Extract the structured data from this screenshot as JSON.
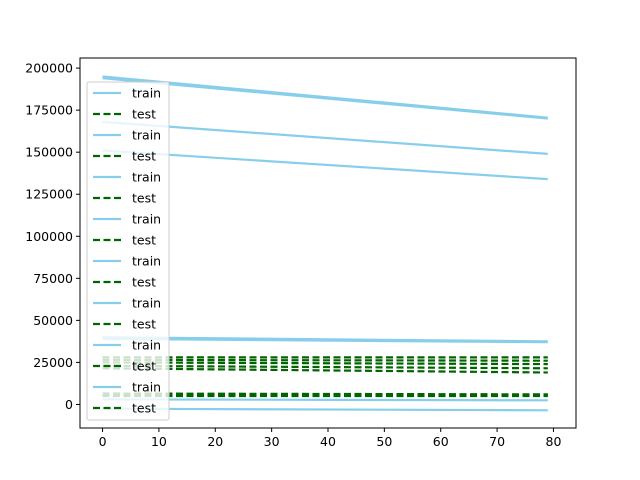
{
  "chart_data": {
    "type": "line",
    "title": "",
    "xlabel": "",
    "ylabel": "",
    "xlim": [
      -4,
      84
    ],
    "ylim": [
      -14000,
      206000
    ],
    "x_ticks": [
      0,
      10,
      20,
      30,
      40,
      50,
      60,
      70,
      80
    ],
    "x_tick_labels": [
      "0",
      "10",
      "20",
      "30",
      "40",
      "50",
      "60",
      "70",
      "80"
    ],
    "y_ticks": [
      0,
      25000,
      50000,
      75000,
      100000,
      125000,
      150000,
      175000,
      200000
    ],
    "y_tick_labels": [
      "0",
      "25000",
      "50000",
      "75000",
      "100000",
      "125000",
      "150000",
      "175000",
      "200000"
    ],
    "grid": false,
    "legend_position": "upper-left",
    "x": [
      0,
      79
    ],
    "series": [
      {
        "name": "train",
        "style": "solid",
        "color": "#87ceeb",
        "values": [
          195000,
          170500
        ]
      },
      {
        "name": "test",
        "style": "dashed",
        "color": "#006400",
        "values": [
          28000,
          28000
        ]
      },
      {
        "name": "train",
        "style": "solid",
        "color": "#87ceeb",
        "values": [
          168000,
          149000
        ]
      },
      {
        "name": "test",
        "style": "dashed",
        "color": "#006400",
        "values": [
          26500,
          26000
        ]
      },
      {
        "name": "train",
        "style": "solid",
        "color": "#87ceeb",
        "values": [
          151000,
          134000
        ]
      },
      {
        "name": "test",
        "style": "dashed",
        "color": "#006400",
        "values": [
          25000,
          24000
        ]
      },
      {
        "name": "train",
        "style": "solid",
        "color": "#87ceeb",
        "values": [
          194000,
          170000
        ]
      },
      {
        "name": "test",
        "style": "dashed",
        "color": "#006400",
        "values": [
          23000,
          21500
        ]
      },
      {
        "name": "train",
        "style": "solid",
        "color": "#87ceeb",
        "values": [
          40000,
          37500
        ]
      },
      {
        "name": "test",
        "style": "dashed",
        "color": "#006400",
        "values": [
          21500,
          19000
        ]
      },
      {
        "name": "train",
        "style": "solid",
        "color": "#87ceeb",
        "values": [
          39000,
          37000
        ]
      },
      {
        "name": "test",
        "style": "dashed",
        "color": "#006400",
        "values": [
          6500,
          6000
        ]
      },
      {
        "name": "train",
        "style": "solid",
        "color": "#87ceeb",
        "values": [
          3000,
          2500
        ]
      },
      {
        "name": "test",
        "style": "dashed",
        "color": "#006400",
        "values": [
          5500,
          5500
        ]
      },
      {
        "name": "train",
        "style": "solid",
        "color": "#87ceeb",
        "values": [
          -2500,
          -3500
        ]
      },
      {
        "name": "test",
        "style": "dashed",
        "color": "#006400",
        "values": [
          5000,
          5000
        ]
      }
    ]
  }
}
